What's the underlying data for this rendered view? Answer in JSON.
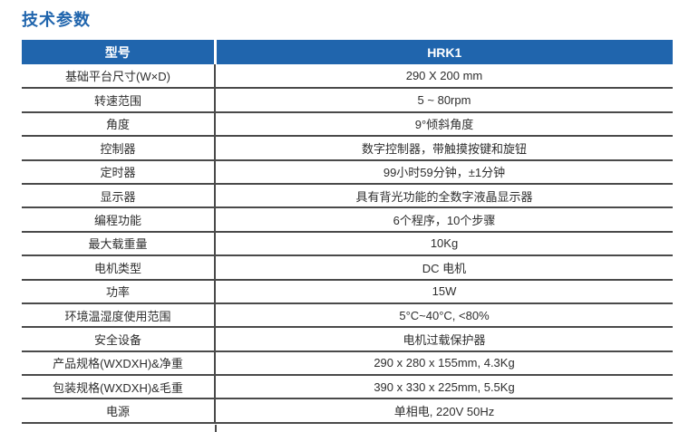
{
  "page_title": "技术参数",
  "accent_color": "#2065ad",
  "border_color": "#4a4a4a",
  "table": {
    "header": {
      "model_label": "型号",
      "model_value": "HRK1"
    },
    "rows": [
      {
        "label": "基础平台尺寸(W×D)",
        "value": "290 X 200 mm"
      },
      {
        "label": "转速范围",
        "value": "5 ~ 80rpm"
      },
      {
        "label": "角度",
        "value": "9°倾斜角度"
      },
      {
        "label": "控制器",
        "value": "数字控制器，带触摸按键和旋钮"
      },
      {
        "label": "定时器",
        "value": "99小时59分钟，±1分钟"
      },
      {
        "label": "显示器",
        "value": "具有背光功能的全数字液晶显示器"
      },
      {
        "label": "编程功能",
        "value": "6个程序，10个步骤"
      },
      {
        "label": "最大载重量",
        "value": "10Kg"
      },
      {
        "label": "电机类型",
        "value": "DC 电机"
      },
      {
        "label": "功率",
        "value": "15W"
      },
      {
        "label": "环境温湿度使用范围",
        "value": "5°C~40°C, <80%"
      },
      {
        "label": "安全设备",
        "value": "电机过载保护器"
      },
      {
        "label": "产品规格(WXDXH)&净重",
        "value": "290 x 280 x 155mm, 4.3Kg"
      },
      {
        "label": "包装规格(WXDXH)&毛重",
        "value": "390 x 330 x 225mm, 5.5Kg"
      },
      {
        "label": "电源",
        "value": "单相电, 220V 50Hz"
      }
    ]
  }
}
